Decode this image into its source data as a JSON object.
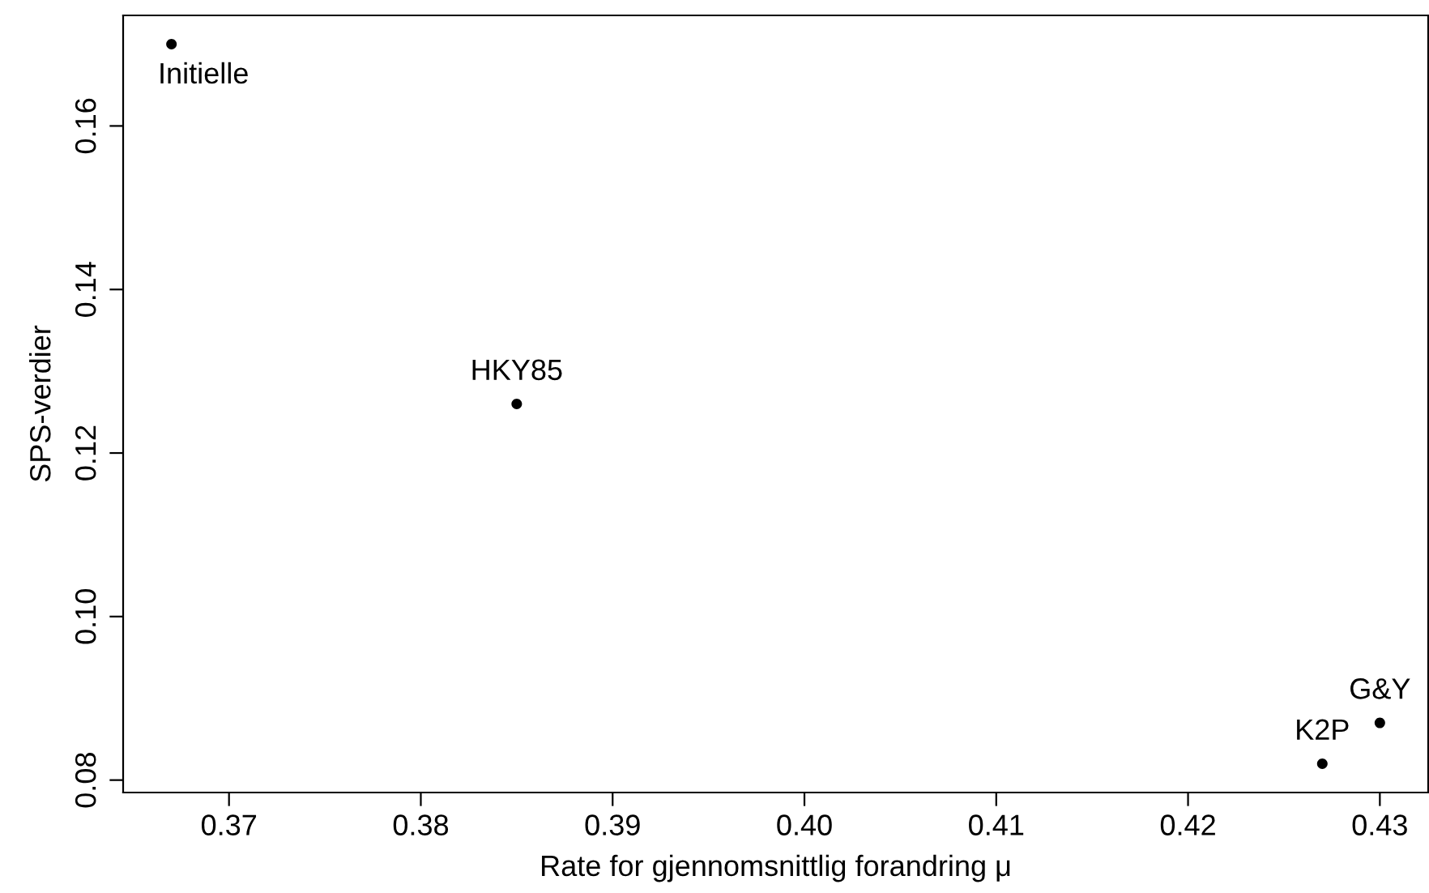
{
  "chart_data": {
    "type": "scatter",
    "xlabel": "Rate for gjennomsnittlig forandring μ",
    "ylabel": "SPS-verdier",
    "x": [
      0.367,
      0.385,
      0.427,
      0.43
    ],
    "values": [
      0.17,
      0.126,
      0.082,
      0.087
    ],
    "color": "#000000",
    "marker": "circle",
    "grid": false,
    "legend": false,
    "xlim": [
      0.36448,
      0.43252
    ],
    "ylim": [
      0.07848,
      0.17352
    ],
    "xticks": [
      0.37,
      0.38,
      0.39,
      {
        "value": 0.4,
        "label": "0.40"
      },
      0.41,
      0.42,
      0.43
    ],
    "yticks": [
      0.08,
      {
        "value": 0.1,
        "label": "0.10"
      },
      0.12,
      0.14,
      0.16
    ],
    "annotations": [
      {
        "text": "Initielle",
        "x": 0.367,
        "y": 0.17
      },
      {
        "text": "HKY85",
        "x": 0.385,
        "y": 0.126
      },
      {
        "text": "K2P",
        "x": 0.427,
        "y": 0.082
      },
      {
        "text": "G&Y",
        "x": 0.43,
        "y": 0.087
      }
    ]
  }
}
